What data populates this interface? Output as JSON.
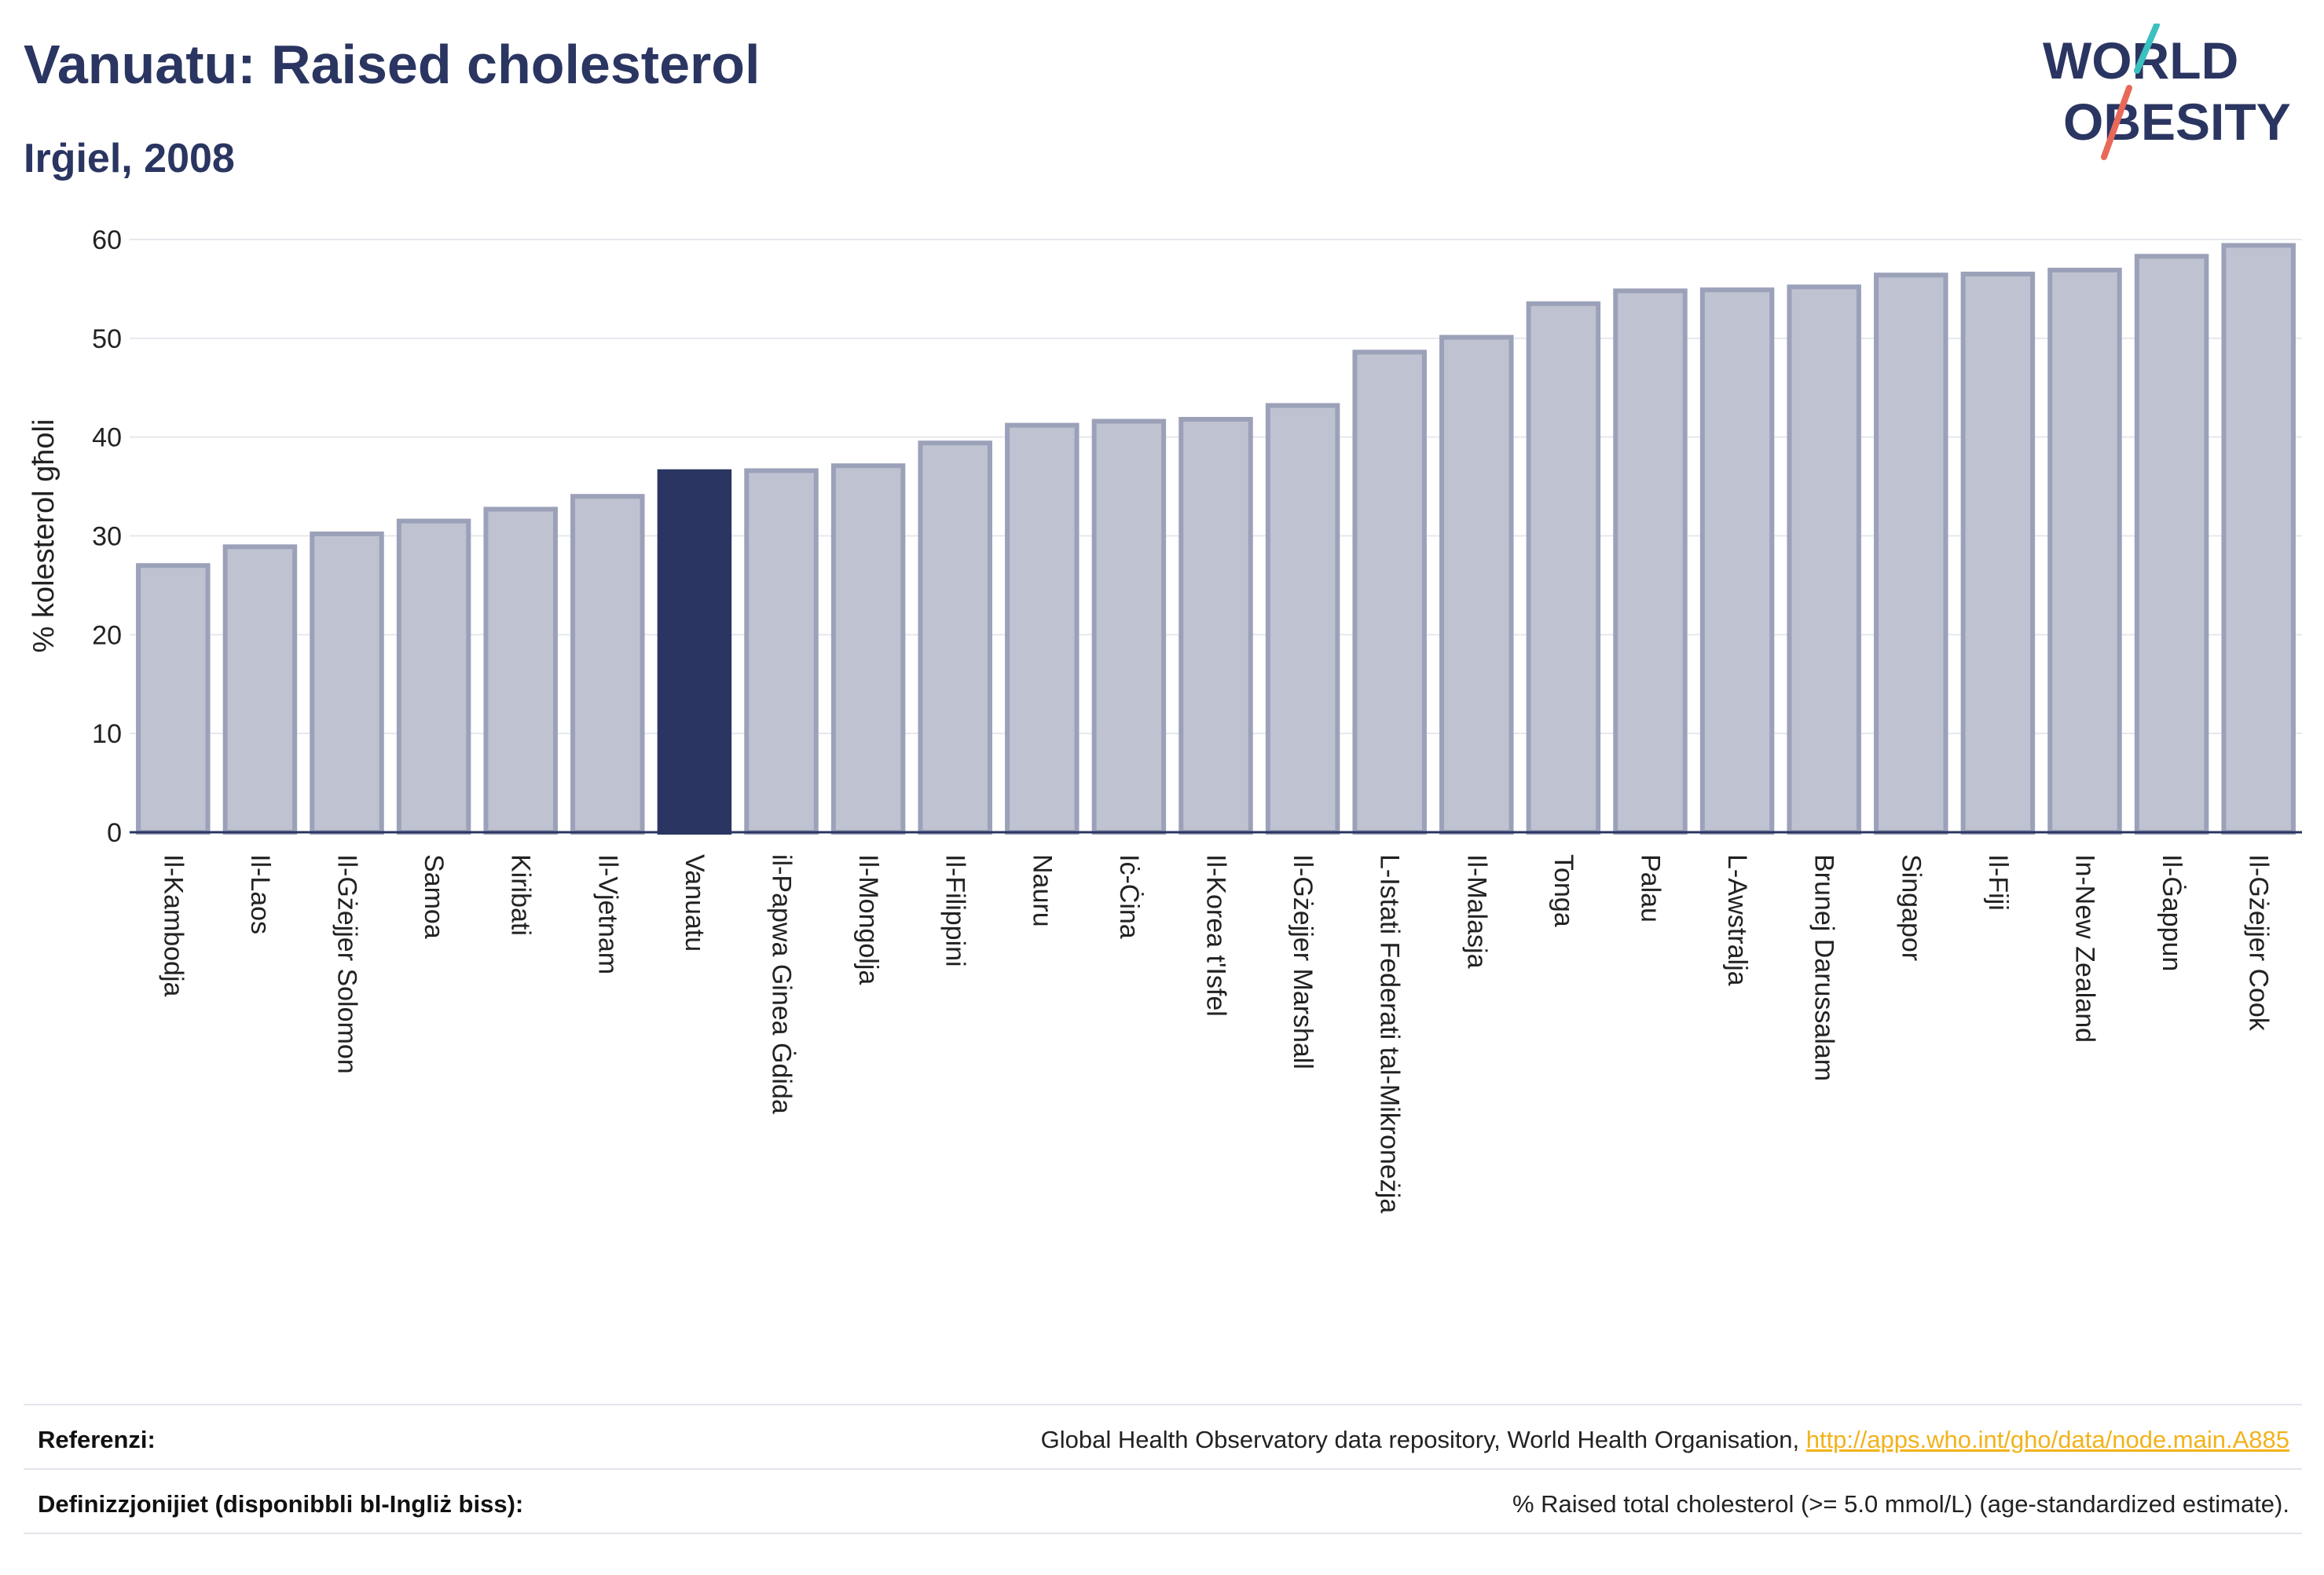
{
  "title": "Vanuatu: Raised cholesterol",
  "subtitle": "Irġiel, 2008",
  "logo": {
    "line1": "WORLD",
    "line2": "OBESITY",
    "accent_colors": [
      "#3cc0c0",
      "#e8685a"
    ]
  },
  "colors": {
    "bar": "#bfc3d1",
    "bar_border": "#9ba1b8",
    "highlight": "#2a3561",
    "grid": "#e6e8ee",
    "text": "#2a3561"
  },
  "chart_data": {
    "type": "bar",
    "ylabel": "% kolesterol għoli",
    "ylim": [
      0,
      60
    ],
    "yticks": [
      0,
      10,
      20,
      30,
      40,
      50,
      60
    ],
    "highlight": "Vanuatu",
    "categories": [
      "Il-Kambodja",
      "Il-Laos",
      "Il-Gżejjer Solomon",
      "Samoa",
      "Kiribati",
      "Il-Vjetnam",
      "Vanuatu",
      "il-Papwa Ginea Ġdida",
      "Il-Mongolja",
      "Il-Filippini",
      "Nauru",
      "Iċ-Ċina",
      "Il-Korea t'Isfel",
      "Il-Gżejjer Marshall",
      "L-Istati Federati tal-Mikroneżja",
      "Il-Malasja",
      "Tonga",
      "Palau",
      "L-Awstralja",
      "Brunej Darussalam",
      "Singapor",
      "Il-Fiji",
      "In-New Zealand",
      "Il-Ġappun",
      "Il-Gżejjer Cook"
    ],
    "values": [
      27.0,
      28.9,
      30.2,
      31.5,
      32.7,
      34.0,
      36.5,
      36.6,
      37.1,
      39.4,
      41.2,
      41.6,
      41.8,
      43.2,
      48.6,
      50.1,
      53.5,
      54.8,
      54.9,
      55.2,
      56.4,
      56.5,
      56.9,
      58.3,
      59.4
    ]
  },
  "footer": {
    "references_label": "Referenzi:",
    "references_text": "Global Health Observatory data repository, World Health Organisation, ",
    "references_link": "http://apps.who.int/gho/data/node.main.A885",
    "definitions_label": "Definizzjonijiet (disponibbli bl-Ingliż biss):",
    "definitions_text": "% Raised total cholesterol (>= 5.0 mmol/L) (age-standardized estimate)."
  }
}
